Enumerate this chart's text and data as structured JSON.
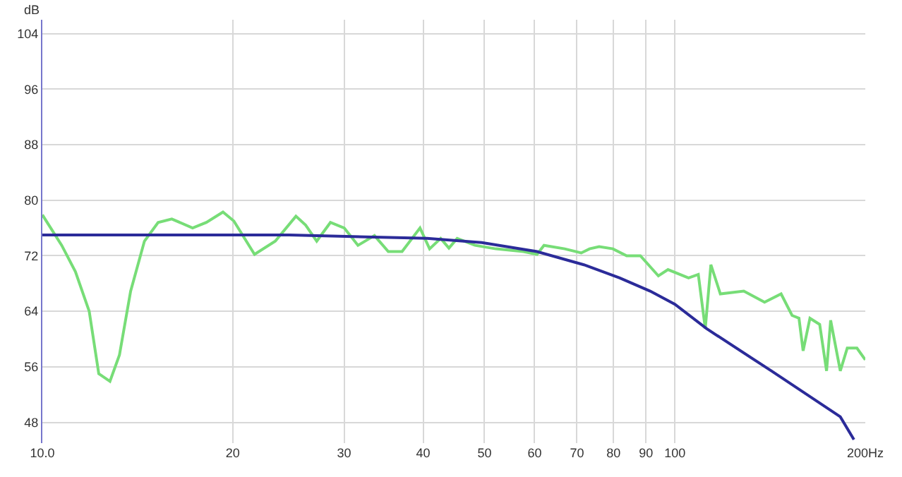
{
  "chart_data": {
    "type": "line",
    "ylabel": "dB",
    "log": "x",
    "grid": true,
    "legend": false,
    "marker": "none",
    "line_style": "solid",
    "xlim": [
      10,
      200
    ],
    "ylim": [
      45,
      106
    ],
    "xticks": [
      {
        "value": 10,
        "label": "10.0"
      },
      20,
      30,
      40,
      50,
      60,
      70,
      80,
      90,
      100,
      {
        "value": 200,
        "label": "200Hz"
      }
    ],
    "yticks": [
      48,
      56,
      64,
      72,
      80,
      88,
      96,
      104
    ],
    "series": [
      {
        "color": "#77dd77",
        "x": [
          10,
          10.73,
          11.28,
          11.86,
          12.28,
          12.79,
          13.24,
          13.79,
          14.5,
          15.24,
          16.02,
          17.28,
          18.17,
          19.3,
          20.08,
          21.65,
          23.35,
          25.17,
          26.08,
          27.15,
          28.54,
          30.01,
          31.55,
          33.5,
          35.23,
          37.04,
          39.54,
          40.95,
          42.63,
          43.93,
          45.27,
          48.31,
          52.1,
          57.61,
          60.55,
          62.1,
          66.96,
          71.11,
          73.3,
          75.91,
          79.8,
          83.9,
          88.2,
          94.17,
          97.52,
          105.1,
          108.9,
          111.7,
          114,
          118,
          128.5,
          138.6,
          147.2,
          153.2,
          157.1,
          159.5,
          163.5,
          169.4,
          173.7,
          176.3,
          182.6,
          187.3,
          194,
          200
        ],
        "values": [
          77.9,
          73.5,
          69.7,
          64,
          55,
          53.9,
          57.7,
          66.9,
          74.1,
          76.8,
          77.3,
          76,
          76.8,
          78.3,
          77,
          72.2,
          74.1,
          77.7,
          76.4,
          74.1,
          76.8,
          76,
          73.5,
          74.9,
          72.6,
          72.6,
          76,
          73,
          74.5,
          73.1,
          74.5,
          73.5,
          73,
          72.6,
          72.2,
          73.5,
          73,
          72.4,
          73,
          73.3,
          73,
          72,
          72,
          69.1,
          70,
          68.8,
          69.3,
          61.5,
          70.7,
          66.5,
          66.9,
          65.3,
          66.5,
          63.4,
          63,
          58.3,
          63,
          62.1,
          55.4,
          62.7,
          55.4,
          58.7,
          58.7,
          57
        ]
      },
      {
        "color": "#2b2b99",
        "x": [
          10,
          24.55,
          40.54,
          49.5,
          60.55,
          71.8,
          81.8,
          91.4,
          100,
          112.2,
          142.1,
          182.6,
          191.9
        ],
        "values": [
          75,
          75,
          74.5,
          73.9,
          72.6,
          70.7,
          68.8,
          66.9,
          65,
          61.5,
          55.4,
          48.8,
          45.5
        ]
      }
    ]
  }
}
